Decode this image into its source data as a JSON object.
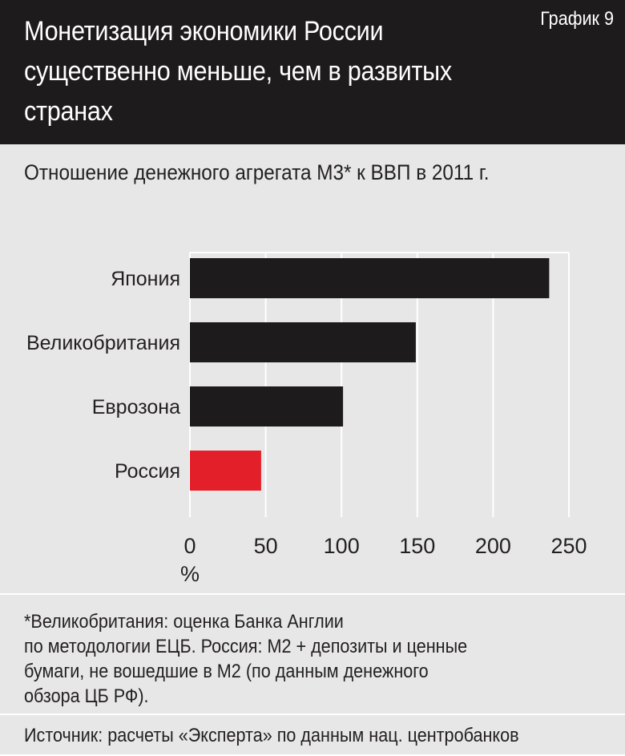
{
  "header": {
    "title": "Монетизация экономики России\nсущественно меньше, чем в развитых\nстранах",
    "chart_label": "График 9"
  },
  "subtitle": "Отношение денежного агрегата М3* к ВВП в 2011 г.",
  "colors": {
    "header_bg": "#1e1b1c",
    "panel_bg": "#e7e7e8",
    "bar_default": "#1e1b1c",
    "bar_highlight": "#e3202a",
    "grid": "#ffffff"
  },
  "chart_data": {
    "type": "bar",
    "orientation": "horizontal",
    "categories": [
      "Япония",
      "Великобритания",
      "Еврозона",
      "Россия"
    ],
    "values": [
      237,
      149,
      101,
      47
    ],
    "highlight": "Россия",
    "xlim": [
      0,
      250
    ],
    "xticks": [
      "0",
      "50",
      "100",
      "150",
      "200",
      "250"
    ],
    "xunit": "%",
    "grid": true
  },
  "footnote": "*Великобритания: оценка Банка Англии\nпо методологии ЕЦБ. Россия: М2 + депозиты и ценные\nбумаги, не вошедшие в М2 (по данным денежного\nобзора ЦБ РФ).",
  "source": "Источник: расчеты «Эксперта» по данным нац. центробанков"
}
